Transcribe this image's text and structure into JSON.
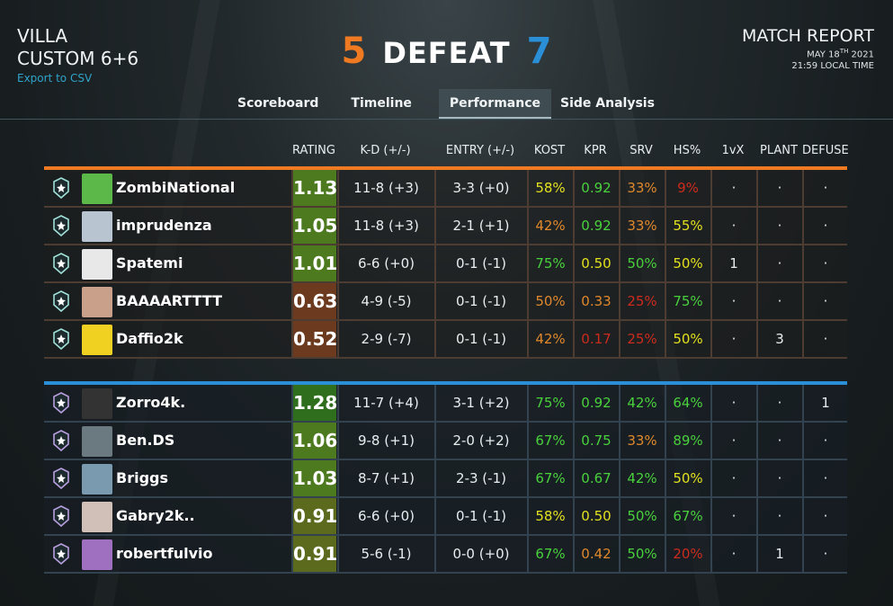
{
  "header": {
    "map": "VILLA",
    "mode": "CUSTOM 6+6",
    "export_label": "Export to CSV",
    "score_left": "5",
    "result": "DEFEAT",
    "score_right": "7",
    "report_title": "MATCH REPORT",
    "date": "MAY 18TH 2021",
    "time": "21:59 LOCAL TIME"
  },
  "tabs": [
    "Scoreboard",
    "Timeline",
    "Performance",
    "Side Analysis"
  ],
  "active_tab": "Performance",
  "columns": [
    "RATING",
    "K-D (+/-)",
    "ENTRY (+/-)",
    "KOST",
    "KPR",
    "SRV",
    "HS%",
    "1vX",
    "PLANT",
    "DEFUSE"
  ],
  "colors": {
    "team1": "#f07a21",
    "team2": "#2a8fd6",
    "yellow": "#e2e01f",
    "green": "#49d13d",
    "orange": "#e0882b",
    "red": "#cc2b1d"
  },
  "team1": [
    {
      "name": "ZombiNational",
      "rating": "1.13",
      "rating_color": "#4e7a1f",
      "kd": "11-8 (+3)",
      "entry": "3-3 (+0)",
      "kost": "58%",
      "kost_c": "yellow",
      "kpr": "0.92",
      "kpr_c": "green",
      "srv": "33%",
      "srv_c": "orange",
      "hs": "9%",
      "hs_c": "red",
      "onevx": "·",
      "plant": "·",
      "defuse": "·",
      "avatar_color": "#5db84a"
    },
    {
      "name": "imprudenza",
      "rating": "1.05",
      "rating_color": "#4e7a1f",
      "kd": "11-8 (+3)",
      "entry": "2-1 (+1)",
      "kost": "42%",
      "kost_c": "orange",
      "kpr": "0.92",
      "kpr_c": "green",
      "srv": "33%",
      "srv_c": "orange",
      "hs": "55%",
      "hs_c": "yellow",
      "onevx": "·",
      "plant": "·",
      "defuse": "·",
      "avatar_color": "#b8c4d0"
    },
    {
      "name": "Spatemi",
      "rating": "1.01",
      "rating_color": "#4e7a1f",
      "kd": "6-6 (+0)",
      "entry": "0-1 (-1)",
      "kost": "75%",
      "kost_c": "green",
      "kpr": "0.50",
      "kpr_c": "yellow",
      "srv": "50%",
      "srv_c": "green",
      "hs": "50%",
      "hs_c": "yellow",
      "onevx": "1",
      "plant": "·",
      "defuse": "·",
      "avatar_color": "#e8e8e8"
    },
    {
      "name": "BAAAARTTTT",
      "rating": "0.63",
      "rating_color": "#6b3a1f",
      "kd": "4-9 (-5)",
      "entry": "0-1 (-1)",
      "kost": "50%",
      "kost_c": "orange",
      "kpr": "0.33",
      "kpr_c": "orange",
      "srv": "25%",
      "srv_c": "red",
      "hs": "75%",
      "hs_c": "green",
      "onevx": "·",
      "plant": "·",
      "defuse": "·",
      "avatar_color": "#c9a08a"
    },
    {
      "name": "Daffio2k",
      "rating": "0.52",
      "rating_color": "#6b3a1f",
      "kd": "2-9 (-7)",
      "entry": "0-1 (-1)",
      "kost": "42%",
      "kost_c": "orange",
      "kpr": "0.17",
      "kpr_c": "red",
      "srv": "25%",
      "srv_c": "red",
      "hs": "50%",
      "hs_c": "yellow",
      "onevx": "·",
      "plant": "3",
      "defuse": "·",
      "avatar_color": "#f0d020"
    }
  ],
  "team2": [
    {
      "name": "Zorro4k.",
      "rating": "1.28",
      "rating_color": "#2f6e1d",
      "kd": "11-7 (+4)",
      "entry": "3-1 (+2)",
      "kost": "75%",
      "kost_c": "green",
      "kpr": "0.92",
      "kpr_c": "green",
      "srv": "42%",
      "srv_c": "green",
      "hs": "64%",
      "hs_c": "green",
      "onevx": "·",
      "plant": "·",
      "defuse": "1",
      "avatar_color": "#333333"
    },
    {
      "name": "Ben.DS",
      "rating": "1.06",
      "rating_color": "#4e7a1f",
      "kd": "9-8 (+1)",
      "entry": "2-0 (+2)",
      "kost": "67%",
      "kost_c": "green",
      "kpr": "0.75",
      "kpr_c": "green",
      "srv": "33%",
      "srv_c": "orange",
      "hs": "89%",
      "hs_c": "green",
      "onevx": "·",
      "plant": "·",
      "defuse": "·",
      "avatar_color": "#6b7a80"
    },
    {
      "name": "Briggs",
      "rating": "1.03",
      "rating_color": "#4e7a1f",
      "kd": "8-7 (+1)",
      "entry": "2-3 (-1)",
      "kost": "67%",
      "kost_c": "green",
      "kpr": "0.67",
      "kpr_c": "green",
      "srv": "42%",
      "srv_c": "green",
      "hs": "50%",
      "hs_c": "yellow",
      "onevx": "·",
      "plant": "·",
      "defuse": "·",
      "avatar_color": "#7a9ab0"
    },
    {
      "name": "Gabry2k..",
      "rating": "0.91",
      "rating_color": "#5c6a1e",
      "kd": "6-6 (+0)",
      "entry": "0-1 (-1)",
      "kost": "58%",
      "kost_c": "yellow",
      "kpr": "0.50",
      "kpr_c": "yellow",
      "srv": "50%",
      "srv_c": "green",
      "hs": "67%",
      "hs_c": "green",
      "onevx": "·",
      "plant": "·",
      "defuse": "·",
      "avatar_color": "#d0c0b8"
    },
    {
      "name": "robertfulvio",
      "rating": "0.91",
      "rating_color": "#5c6a1e",
      "kd": "5-6 (-1)",
      "entry": "0-0 (+0)",
      "kost": "67%",
      "kost_c": "green",
      "kpr": "0.42",
      "kpr_c": "orange",
      "srv": "50%",
      "srv_c": "green",
      "hs": "20%",
      "hs_c": "red",
      "onevx": "·",
      "plant": "1",
      "defuse": "·",
      "avatar_color": "#a070c0"
    }
  ]
}
